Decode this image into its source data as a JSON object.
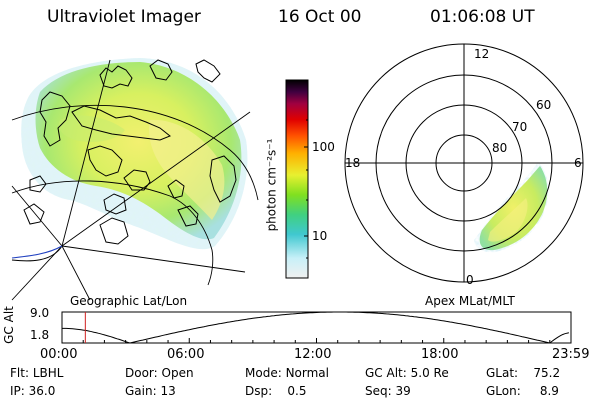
{
  "header": {
    "instrument": "Ultraviolet Imager",
    "date": "16 Oct 00",
    "time": "01:06:08 UT"
  },
  "colorbar": {
    "unit_label": "photon cm⁻²s⁻¹",
    "ticks": [
      "100",
      "10"
    ],
    "tick_values": [
      100,
      10
    ],
    "range": [
      3,
      400
    ],
    "colors": [
      "#f0f0f0",
      "#c8f0f8",
      "#40c8d0",
      "#40d080",
      "#80e020",
      "#e8f030",
      "#ffb000",
      "#ff5000",
      "#e00000",
      "#a00040",
      "#400040",
      "#000000"
    ]
  },
  "geo_panel": {
    "label": "Geographic Lat/Lon"
  },
  "polar_panel": {
    "label": "Apex MLat/MLT",
    "mlt_labels": [
      "12",
      "18",
      "6",
      "0"
    ],
    "lat_labels": [
      "60",
      "70",
      "80"
    ],
    "lat_values": [
      60,
      70,
      80
    ]
  },
  "altitude_plot": {
    "ylabel": "GC Alt",
    "yticks": [
      "9.0",
      "1.8"
    ],
    "ylim": [
      1.8,
      9.0
    ],
    "xticks": [
      "00:00",
      "06:00",
      "12:00",
      "18:00",
      "23:59"
    ],
    "xlim_hours": [
      0,
      24
    ],
    "current_hour": 1.1,
    "cursor_color": "#d02020",
    "perigee_hours": [
      3.2,
      23.0
    ],
    "apogee_hour": 13.2
  },
  "info": {
    "flt_label": "Flt:",
    "flt_value": "LBHL",
    "ip_label": "IP:",
    "ip_value": "36.0",
    "door_label": "Door:",
    "door_value": "Open",
    "gain_label": "Gain:",
    "gain_value": "13",
    "mode_label": "Mode:",
    "mode_value": "Normal",
    "dsp_label": "Dsp:",
    "dsp_value": "0.5",
    "gcalt_label": "GC Alt:",
    "gcalt_value": "5.0 Re",
    "seq_label": "Seq:",
    "seq_value": "39",
    "glat_label": "GLat:",
    "glat_value": "75.2",
    "glon_label": "GLon:",
    "glon_value": "8.9"
  }
}
